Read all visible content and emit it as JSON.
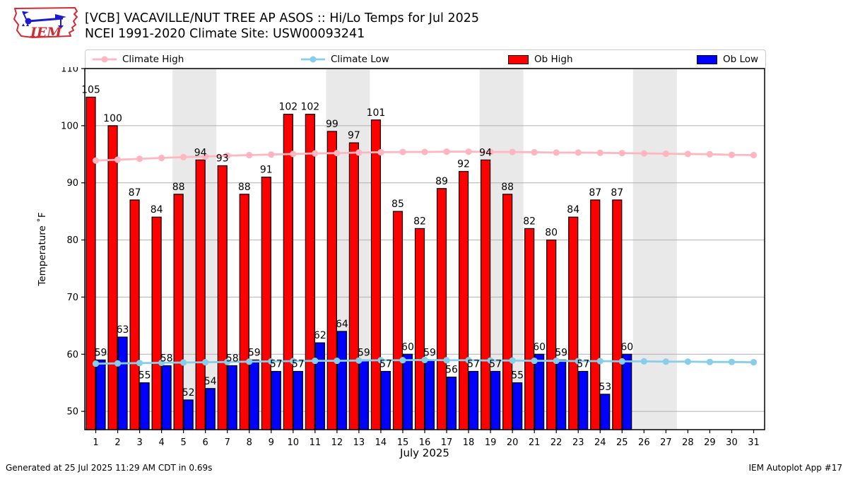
{
  "header": {
    "title_line1": "[VCB] VACAVILLE/NUT TREE AP ASOS :: Hi/Lo Temps for Jul 2025",
    "title_line2": "NCEI 1991-2020 Climate Site: USW00093241",
    "logo_text": "IEM"
  },
  "legend": {
    "climate_high": "Climate High",
    "climate_low": "Climate Low",
    "ob_high": "Ob High",
    "ob_low": "Ob Low"
  },
  "footer": {
    "left": "Generated at 25 Jul 2025 11:29 AM CDT in 0.69s",
    "right": "IEM Autoplot App #17"
  },
  "colors": {
    "climate_high": "#ffb6c1",
    "climate_low": "#87ceeb",
    "ob_high": "#ff0000",
    "ob_low": "#0000ff",
    "weekend_band": "#e9e9e9",
    "gridline": "#b0b0b0",
    "logo_red": "#d42a33",
    "logo_blue": "#1a1acc"
  },
  "chart_data": {
    "type": "bar",
    "title": "[VCB] VACAVILLE/NUT TREE AP ASOS :: Hi/Lo Temps for Jul 2025",
    "subtitle": "NCEI 1991-2020 Climate Site: USW00093241",
    "xlabel": "July 2025",
    "ylabel": "Temperature ˚F",
    "ylim": [
      46.8,
      110
    ],
    "yticks": [
      50,
      60,
      70,
      80,
      90,
      100,
      110
    ],
    "grid": true,
    "legend_position": "top",
    "x": [
      1,
      2,
      3,
      4,
      5,
      6,
      7,
      8,
      9,
      10,
      11,
      12,
      13,
      14,
      15,
      16,
      17,
      18,
      19,
      20,
      21,
      22,
      23,
      24,
      25,
      26,
      27,
      28,
      29,
      30,
      31
    ],
    "weekend_bands": [
      [
        4.5,
        6.5
      ],
      [
        11.5,
        13.5
      ],
      [
        18.5,
        20.5
      ],
      [
        25.5,
        27.5
      ]
    ],
    "series": [
      {
        "name": "Climate High",
        "type": "line",
        "color": "#ffb6c1",
        "values": [
          93.9,
          94.05,
          94.2,
          94.35,
          94.5,
          94.6,
          94.75,
          94.85,
          94.95,
          95.05,
          95.15,
          95.2,
          95.3,
          95.35,
          95.4,
          95.4,
          95.45,
          95.45,
          95.4,
          95.4,
          95.35,
          95.3,
          95.3,
          95.25,
          95.2,
          95.15,
          95.1,
          95.05,
          95.0,
          94.9,
          94.85
        ]
      },
      {
        "name": "Climate Low",
        "type": "line",
        "color": "#87ceeb",
        "values": [
          58.35,
          58.4,
          58.45,
          58.5,
          58.55,
          58.6,
          58.65,
          58.7,
          58.75,
          58.8,
          58.85,
          58.85,
          58.9,
          58.95,
          58.95,
          59.0,
          58.95,
          58.95,
          58.9,
          58.9,
          58.85,
          58.85,
          58.8,
          58.8,
          58.75,
          58.75,
          58.7,
          58.7,
          58.65,
          58.65,
          58.6
        ]
      },
      {
        "name": "Ob High",
        "type": "bar",
        "color": "#ff0000",
        "values": [
          105,
          100,
          87,
          84,
          88,
          94,
          93,
          88,
          91,
          102,
          102,
          99,
          97,
          101,
          85,
          82,
          89,
          92,
          94,
          88,
          82,
          80,
          84,
          87,
          87
        ]
      },
      {
        "name": "Ob Low",
        "type": "bar",
        "color": "#0000ff",
        "values": [
          59,
          63,
          55,
          58,
          52,
          54,
          58,
          59,
          57,
          57,
          62,
          64,
          59,
          57,
          60,
          59,
          56,
          57,
          57,
          55,
          60,
          59,
          57,
          53,
          60
        ]
      }
    ]
  }
}
